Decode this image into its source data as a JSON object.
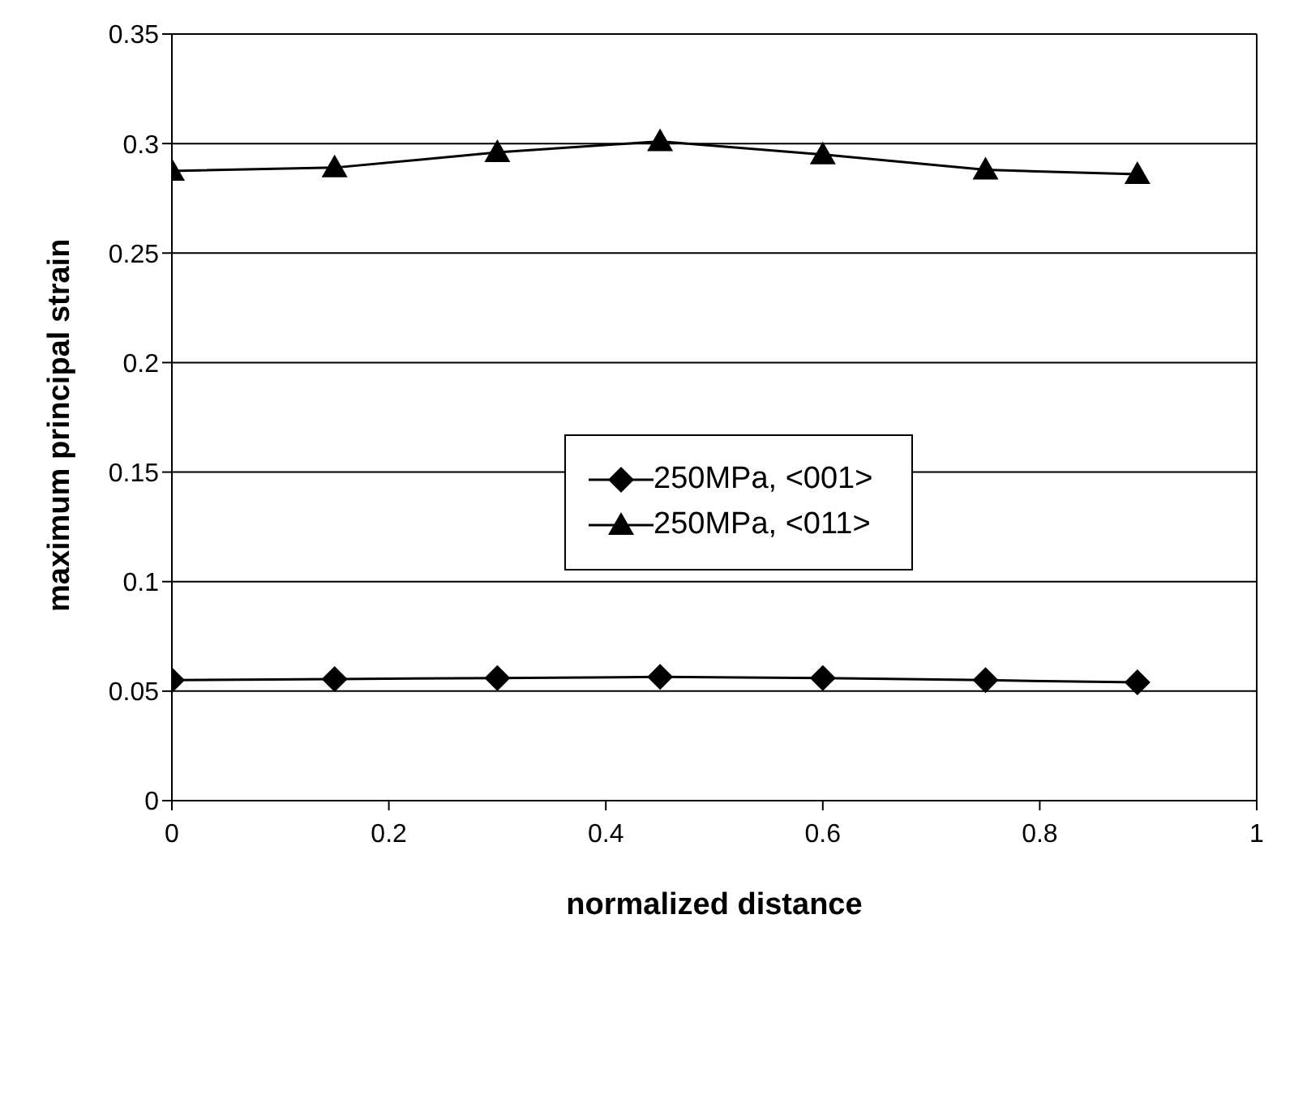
{
  "chart_data": {
    "type": "line",
    "xlabel": "normalized distance",
    "ylabel": "maximum principal strain",
    "x": [
      0,
      0.15,
      0.3,
      0.45,
      0.6,
      0.75,
      0.89
    ],
    "series": [
      {
        "name": "250MPa, <001>",
        "color": "#000000",
        "marker": "diamond",
        "values": [
          0.055,
          0.0555,
          0.056,
          0.0565,
          0.056,
          0.055,
          0.054
        ]
      },
      {
        "name": "250MPa, <011>",
        "color": "#000000",
        "marker": "triangle",
        "values": [
          0.2875,
          0.289,
          0.296,
          0.301,
          0.295,
          0.288,
          0.286
        ]
      }
    ],
    "xlim": [
      0,
      1
    ],
    "xticks": [
      0,
      0.2,
      0.4,
      0.6,
      0.8,
      1
    ],
    "ylim": [
      0,
      0.35
    ],
    "yticks": [
      0,
      0.05,
      0.1,
      0.15,
      0.2,
      0.25,
      0.3,
      0.35
    ],
    "grid": "y",
    "legend": "right",
    "line_style": "solid"
  }
}
